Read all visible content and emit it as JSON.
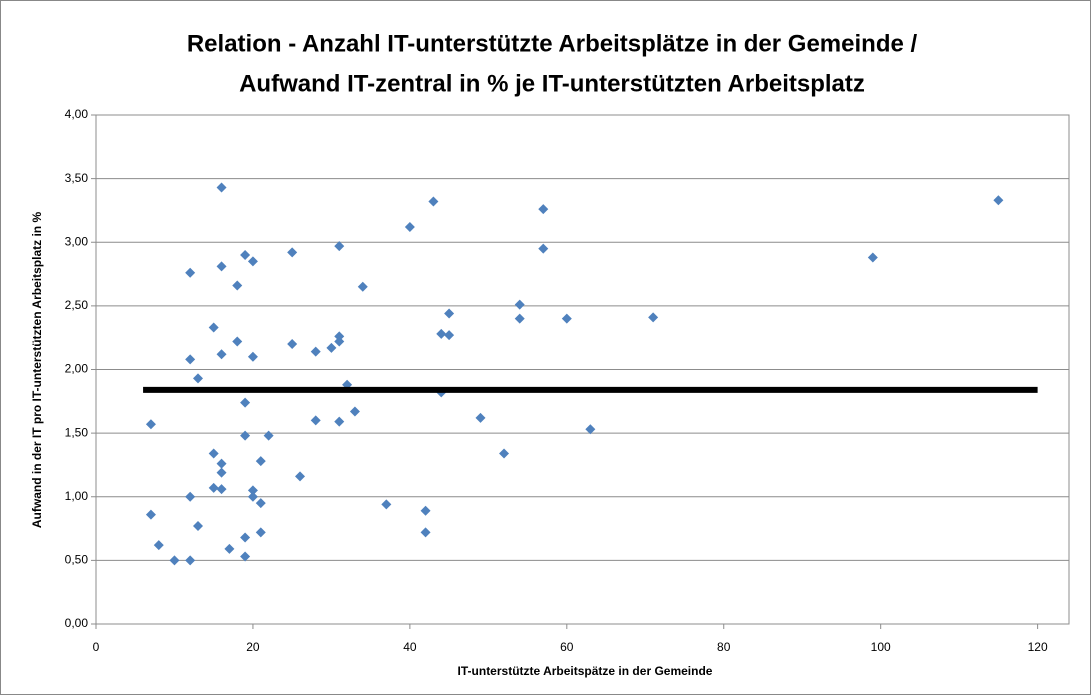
{
  "chart_data": {
    "type": "scatter",
    "title": [
      "Relation - Anzahl IT-unterstützte Arbeitsplätze in der Gemeinde /",
      "Aufwand IT-zentral in % je IT-unterstützten Arbeitsplatz"
    ],
    "x_label": "IT-unterstützte Arbeitspätze in der Gemeinde",
    "y_label": "Aufwand in der IT pro IT-unterstützten Arbeitsplatz in %",
    "xlim": [
      0,
      124
    ],
    "xticks": [
      0,
      20,
      40,
      60,
      80,
      100,
      120
    ],
    "ylim": [
      0,
      4
    ],
    "yticks": [
      {
        "value": 0,
        "label": "0,00"
      },
      {
        "value": 0.5,
        "label": "0,50"
      },
      {
        "value": 1,
        "label": "1,00"
      },
      {
        "value": 1.5,
        "label": "1,50"
      },
      {
        "value": 2,
        "label": "2,00"
      },
      {
        "value": 2.5,
        "label": "2,50"
      },
      {
        "value": 3,
        "label": "3,00"
      },
      {
        "value": 3.5,
        "label": "3,50"
      },
      {
        "value": 4,
        "label": "4,00"
      }
    ],
    "grid": true,
    "series": [
      {
        "style": "marker",
        "color": "#4f81bd",
        "x": [
          7,
          7,
          8,
          10,
          12,
          12,
          12,
          12,
          13,
          13,
          15,
          15,
          15,
          16,
          16,
          16,
          16,
          16,
          16,
          17,
          18,
          18,
          19,
          19,
          19,
          19,
          19,
          20,
          20,
          20,
          20,
          21,
          21,
          21,
          22,
          25,
          25,
          26,
          28,
          28,
          30,
          31,
          31,
          31,
          31,
          32,
          33,
          34,
          37,
          40,
          42,
          42,
          43,
          44,
          44,
          45,
          45,
          49,
          52,
          54,
          54,
          57,
          57,
          60,
          63,
          71,
          99,
          115
        ],
        "values": [
          1.57,
          0.86,
          0.62,
          0.5,
          0.5,
          1.0,
          2.76,
          2.08,
          1.93,
          0.77,
          2.33,
          1.34,
          1.07,
          3.43,
          2.81,
          2.12,
          1.26,
          1.19,
          1.06,
          0.59,
          2.66,
          2.22,
          2.9,
          1.74,
          1.48,
          0.68,
          0.53,
          2.85,
          2.1,
          1.05,
          1.0,
          1.28,
          0.95,
          0.72,
          1.48,
          2.92,
          2.2,
          1.16,
          2.14,
          1.6,
          2.17,
          2.97,
          2.26,
          2.22,
          1.59,
          1.88,
          1.67,
          2.65,
          0.94,
          3.12,
          0.89,
          0.72,
          3.32,
          2.28,
          1.82,
          2.27,
          2.44,
          1.62,
          1.34,
          2.51,
          2.4,
          3.26,
          2.95,
          2.4,
          1.53,
          2.41,
          2.88,
          3.33
        ]
      },
      {
        "style": "line",
        "color": "#000000",
        "x": [
          6,
          120
        ],
        "values": [
          1.84,
          1.84
        ]
      }
    ]
  }
}
